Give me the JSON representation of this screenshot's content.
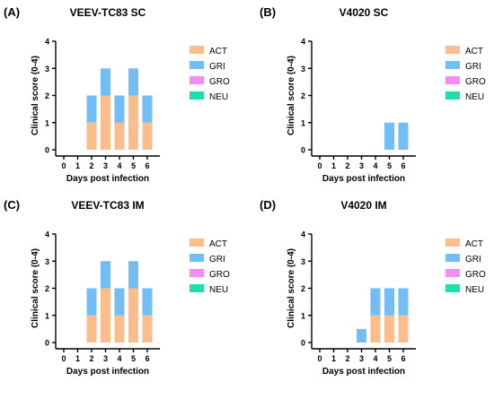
{
  "chart_data": [
    {
      "type": "bar",
      "stacked": true,
      "panel_label": "(A)",
      "title": "VEEV-TC83 SC",
      "xlabel": "Days post infection",
      "ylabel": "Clinical score (0-4)",
      "categories": [
        "0",
        "1",
        "2",
        "3",
        "4",
        "5",
        "6"
      ],
      "ylim": [
        0,
        4
      ],
      "yticks": [
        "0",
        "1",
        "2",
        "3",
        "4"
      ],
      "legend_position": "right",
      "series": [
        {
          "name": "ACT",
          "color": "#F9BE8C",
          "values": [
            0,
            0,
            1,
            2,
            1,
            2,
            1
          ]
        },
        {
          "name": "GRI",
          "color": "#73BDF5",
          "values": [
            0,
            0,
            1,
            1,
            1,
            1,
            1
          ]
        },
        {
          "name": "GRO",
          "color": "#F48CF2",
          "values": [
            0,
            0,
            0,
            0,
            0,
            0,
            0
          ]
        },
        {
          "name": "NEU",
          "color": "#1DE0A9",
          "values": [
            0,
            0,
            0,
            0,
            0,
            0,
            0
          ]
        }
      ]
    },
    {
      "type": "bar",
      "stacked": true,
      "panel_label": "(B)",
      "title": "V4020 SC",
      "xlabel": "Days post infection",
      "ylabel": "Clinical score (0-4)",
      "categories": [
        "0",
        "1",
        "2",
        "3",
        "4",
        "5",
        "6"
      ],
      "ylim": [
        0,
        4
      ],
      "yticks": [
        "0",
        "1",
        "2",
        "3",
        "4"
      ],
      "legend_position": "right",
      "series": [
        {
          "name": "ACT",
          "color": "#F9BE8C",
          "values": [
            0,
            0,
            0,
            0,
            0,
            0,
            0
          ]
        },
        {
          "name": "GRI",
          "color": "#73BDF5",
          "values": [
            0,
            0,
            0,
            0,
            0,
            1,
            1
          ]
        },
        {
          "name": "GRO",
          "color": "#F48CF2",
          "values": [
            0,
            0,
            0,
            0,
            0,
            0,
            0
          ]
        },
        {
          "name": "NEU",
          "color": "#1DE0A9",
          "values": [
            0,
            0,
            0,
            0,
            0,
            0,
            0
          ]
        }
      ]
    },
    {
      "type": "bar",
      "stacked": true,
      "panel_label": "(C)",
      "title": "VEEV-TC83 IM",
      "xlabel": "Days post infection",
      "ylabel": "Clinical score (0-4)",
      "categories": [
        "0",
        "1",
        "2",
        "3",
        "4",
        "5",
        "6"
      ],
      "ylim": [
        0,
        4
      ],
      "yticks": [
        "0",
        "1",
        "2",
        "3",
        "4"
      ],
      "legend_position": "right",
      "series": [
        {
          "name": "ACT",
          "color": "#F9BE8C",
          "values": [
            0,
            0,
            1,
            2,
            1,
            2,
            1
          ]
        },
        {
          "name": "GRI",
          "color": "#73BDF5",
          "values": [
            0,
            0,
            1,
            1,
            1,
            1,
            1
          ]
        },
        {
          "name": "GRO",
          "color": "#F48CF2",
          "values": [
            0,
            0,
            0,
            0,
            0,
            0,
            0
          ]
        },
        {
          "name": "NEU",
          "color": "#1DE0A9",
          "values": [
            0,
            0,
            0,
            0,
            0,
            0,
            0
          ]
        }
      ]
    },
    {
      "type": "bar",
      "stacked": true,
      "panel_label": "(D)",
      "title": "V4020 IM",
      "xlabel": "Days post infection",
      "ylabel": "Clinical score (0-4)",
      "categories": [
        "0",
        "1",
        "2",
        "3",
        "4",
        "5",
        "6"
      ],
      "ylim": [
        0,
        4
      ],
      "yticks": [
        "0",
        "1",
        "2",
        "3",
        "4"
      ],
      "legend_position": "right",
      "series": [
        {
          "name": "ACT",
          "color": "#F9BE8C",
          "values": [
            0,
            0,
            0,
            0,
            1,
            1,
            1
          ]
        },
        {
          "name": "GRI",
          "color": "#73BDF5",
          "values": [
            0,
            0,
            0,
            0.5,
            1,
            1,
            1
          ]
        },
        {
          "name": "GRO",
          "color": "#F48CF2",
          "values": [
            0,
            0,
            0,
            0,
            0,
            0,
            0
          ]
        },
        {
          "name": "NEU",
          "color": "#1DE0A9",
          "values": [
            0,
            0,
            0,
            0,
            0,
            0,
            0
          ]
        }
      ]
    }
  ]
}
